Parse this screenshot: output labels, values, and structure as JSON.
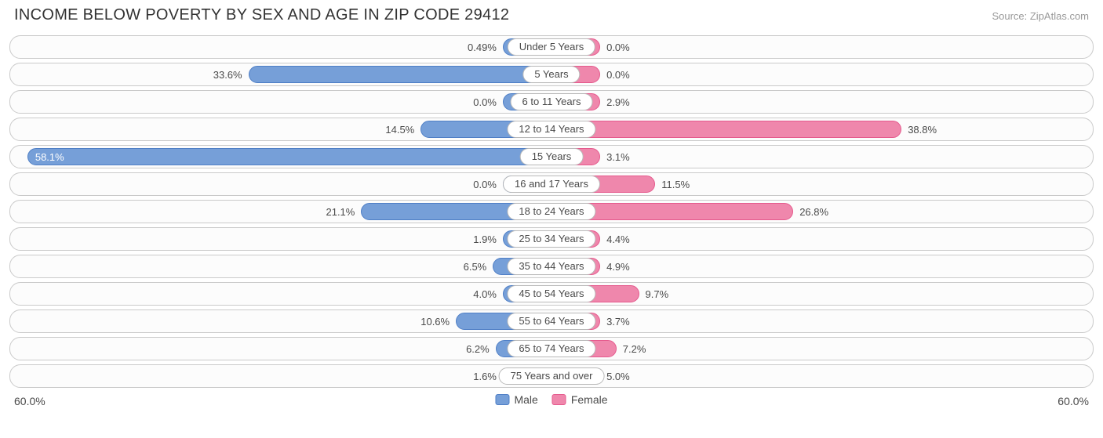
{
  "title": "INCOME BELOW POVERTY BY SEX AND AGE IN ZIP CODE 29412",
  "source": "Source: ZipAtlas.com",
  "axis_max": 60.0,
  "axis_label_left": "60.0%",
  "axis_label_right": "60.0%",
  "legend": {
    "male": "Male",
    "female": "Female"
  },
  "colors": {
    "male_fill": "#769fd8",
    "male_border": "#4f7fc6",
    "female_fill": "#ef87ac",
    "female_border": "#e55a8d",
    "row_border": "#cacaca",
    "row_bg": "#fcfcfc",
    "text": "#4a4a4a",
    "text_inside": "#ffffff"
  },
  "inside_threshold": 40.0,
  "rows": [
    {
      "label": "Under 5 Years",
      "male": 0.49,
      "female": 0.0,
      "male_txt": "0.49%",
      "female_txt": "0.0%"
    },
    {
      "label": "5 Years",
      "male": 33.6,
      "female": 0.0,
      "male_txt": "33.6%",
      "female_txt": "0.0%"
    },
    {
      "label": "6 to 11 Years",
      "male": 0.0,
      "female": 2.9,
      "male_txt": "0.0%",
      "female_txt": "2.9%"
    },
    {
      "label": "12 to 14 Years",
      "male": 14.5,
      "female": 38.8,
      "male_txt": "14.5%",
      "female_txt": "38.8%"
    },
    {
      "label": "15 Years",
      "male": 58.1,
      "female": 3.1,
      "male_txt": "58.1%",
      "female_txt": "3.1%"
    },
    {
      "label": "16 and 17 Years",
      "male": 0.0,
      "female": 11.5,
      "male_txt": "0.0%",
      "female_txt": "11.5%"
    },
    {
      "label": "18 to 24 Years",
      "male": 21.1,
      "female": 26.8,
      "male_txt": "21.1%",
      "female_txt": "26.8%"
    },
    {
      "label": "25 to 34 Years",
      "male": 1.9,
      "female": 4.4,
      "male_txt": "1.9%",
      "female_txt": "4.4%"
    },
    {
      "label": "35 to 44 Years",
      "male": 6.5,
      "female": 4.9,
      "male_txt": "6.5%",
      "female_txt": "4.9%"
    },
    {
      "label": "45 to 54 Years",
      "male": 4.0,
      "female": 9.7,
      "male_txt": "4.0%",
      "female_txt": "9.7%"
    },
    {
      "label": "55 to 64 Years",
      "male": 10.6,
      "female": 3.7,
      "male_txt": "10.6%",
      "female_txt": "3.7%"
    },
    {
      "label": "65 to 74 Years",
      "male": 6.2,
      "female": 7.2,
      "male_txt": "6.2%",
      "female_txt": "7.2%"
    },
    {
      "label": "75 Years and over",
      "male": 1.6,
      "female": 5.0,
      "male_txt": "1.6%",
      "female_txt": "5.0%"
    }
  ]
}
